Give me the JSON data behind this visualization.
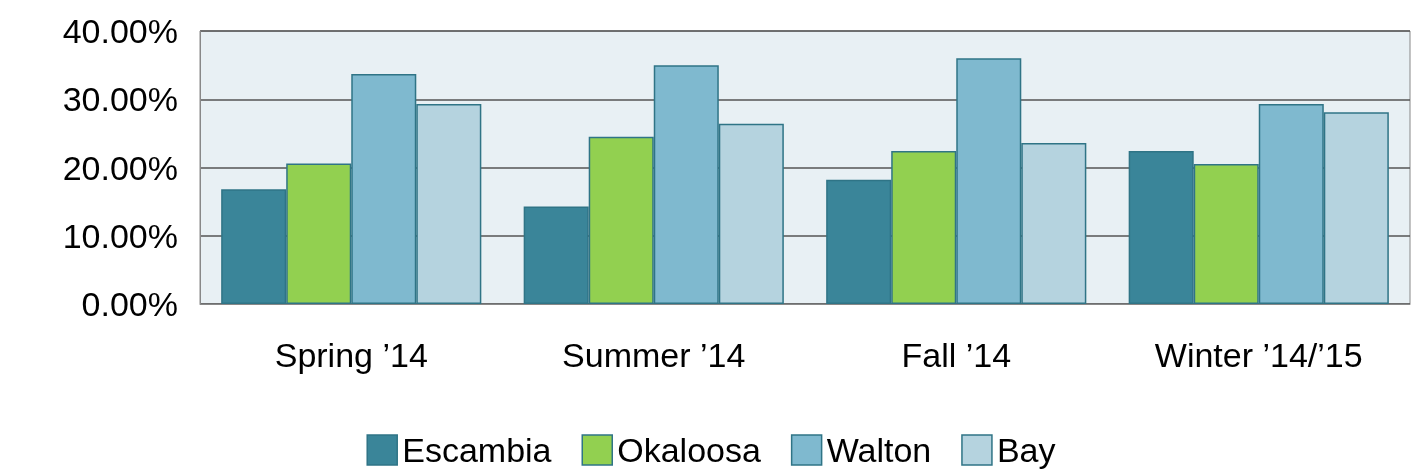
{
  "chart_data": {
    "type": "bar",
    "categories": [
      "Spring ’14",
      "Summer ’14",
      "Fall ’14",
      "Winter ’14/’15"
    ],
    "series": [
      {
        "name": "Escambia",
        "color": "#3a8599",
        "values": [
          16.8,
          14.3,
          18.2,
          22.4
        ]
      },
      {
        "name": "Okaloosa",
        "color": "#92d050",
        "values": [
          20.6,
          24.5,
          22.4,
          20.5
        ]
      },
      {
        "name": "Walton",
        "color": "#7fb9cf",
        "values": [
          33.7,
          35.0,
          36.0,
          29.3
        ]
      },
      {
        "name": "Bay",
        "color": "#b5d3df",
        "values": [
          29.3,
          26.4,
          23.6,
          28.1
        ]
      }
    ],
    "ylim": [
      0,
      40
    ],
    "yticks": [
      {
        "value": 0,
        "label": "0.00%"
      },
      {
        "value": 10,
        "label": "10.00%"
      },
      {
        "value": 20,
        "label": "20.00%"
      },
      {
        "value": 30,
        "label": "30.00%"
      },
      {
        "value": 40,
        "label": "40.00%"
      }
    ],
    "grid": "y",
    "legend": "bottom"
  }
}
